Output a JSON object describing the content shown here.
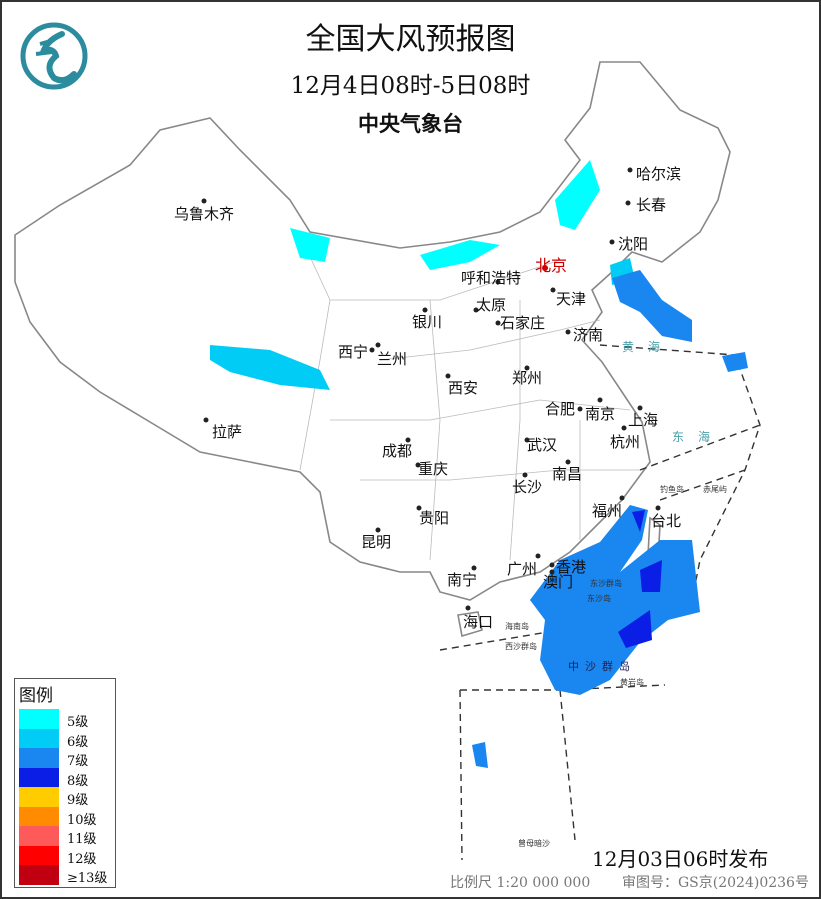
{
  "header": {
    "title": "全国大风预报图",
    "period": "12月4日08时-5日08时",
    "issuer": "中央气象台",
    "logo": "cma-logo-icon"
  },
  "cities": [
    {
      "name": "乌鲁木齐"
    },
    {
      "name": "哈尔滨"
    },
    {
      "name": "长春"
    },
    {
      "name": "沈阳"
    },
    {
      "name": "北京"
    },
    {
      "name": "呼和浩特"
    },
    {
      "name": "天津"
    },
    {
      "name": "太原"
    },
    {
      "name": "石家庄"
    },
    {
      "name": "银川"
    },
    {
      "name": "济南"
    },
    {
      "name": "西宁"
    },
    {
      "name": "兰州"
    },
    {
      "name": "郑州"
    },
    {
      "name": "西安"
    },
    {
      "name": "合肥"
    },
    {
      "name": "南京"
    },
    {
      "name": "上海"
    },
    {
      "name": "杭州"
    },
    {
      "name": "拉萨"
    },
    {
      "name": "成都"
    },
    {
      "name": "武汉"
    },
    {
      "name": "重庆"
    },
    {
      "name": "长沙"
    },
    {
      "name": "南昌"
    },
    {
      "name": "福州"
    },
    {
      "name": "台北"
    },
    {
      "name": "贵阳"
    },
    {
      "name": "昆明"
    },
    {
      "name": "广州"
    },
    {
      "name": "香港"
    },
    {
      "name": "澳门"
    },
    {
      "name": "南宁"
    },
    {
      "name": "海口"
    }
  ],
  "seas": [
    {
      "name": "黄海"
    },
    {
      "name": "东海"
    }
  ],
  "islands": [
    {
      "name": "钓鱼岛"
    },
    {
      "name": "赤尾屿"
    },
    {
      "name": "东沙群岛"
    },
    {
      "name": "东沙岛"
    },
    {
      "name": "海南岛"
    },
    {
      "name": "西沙群岛"
    },
    {
      "name": "中沙群岛"
    },
    {
      "name": "黄岩岛"
    },
    {
      "name": "曾母暗沙"
    }
  ],
  "legend": {
    "title": "图例",
    "items": [
      {
        "label": "5级",
        "color": "#00ffff"
      },
      {
        "label": "6级",
        "color": "#00ccf5"
      },
      {
        "label": "7级",
        "color": "#1a86f0"
      },
      {
        "label": "8级",
        "color": "#0a1ee6"
      },
      {
        "label": "9级",
        "color": "#ffcc00"
      },
      {
        "label": "10级",
        "color": "#ff8c00"
      },
      {
        "label": "11级",
        "color": "#ff5a5a"
      },
      {
        "label": "12级",
        "color": "#ff0000"
      },
      {
        "label": "≥13级",
        "color": "#c00010"
      }
    ]
  },
  "footer": {
    "issued": "12月03日06时发布",
    "scale": "比例尺 1:20 000 000",
    "review_no": "审图号：GS京(2024)0236号"
  }
}
